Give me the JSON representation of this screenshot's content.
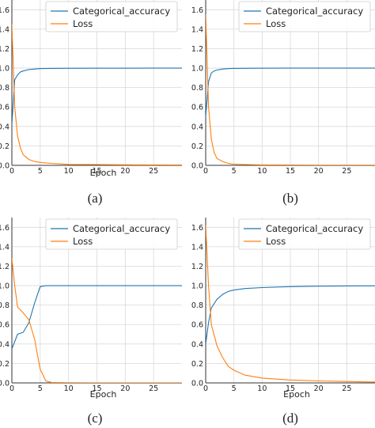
{
  "chart_data": [
    {
      "type": "line",
      "caption": "(a)",
      "xlabel": "Epoch",
      "ylabel": "",
      "xlim": [
        0,
        30
      ],
      "ylim": [
        0,
        1.7
      ],
      "xticks": [
        0,
        5,
        10,
        15,
        20,
        25
      ],
      "yticks": [
        0.0,
        0.2,
        0.4,
        0.6,
        0.8,
        1.0,
        1.2,
        1.4,
        1.6
      ],
      "grid": true,
      "legend_position": "top-right",
      "series": [
        {
          "name": "Categorical_accuracy",
          "color": "#1f77b4",
          "x": [
            0,
            0.5,
            1,
            1.5,
            2,
            3,
            4,
            5,
            7,
            10,
            15,
            20,
            25,
            29,
            30
          ],
          "y": [
            0.42,
            0.88,
            0.93,
            0.96,
            0.97,
            0.985,
            0.99,
            0.995,
            0.997,
            0.998,
            0.999,
            0.999,
            1.0,
            1.0,
            1.0
          ]
        },
        {
          "name": "Loss",
          "color": "#ff7f0e",
          "x": [
            0,
            0.5,
            1,
            1.5,
            2,
            3,
            4,
            5,
            7,
            10,
            15,
            20,
            25,
            29,
            30
          ],
          "y": [
            1.45,
            0.6,
            0.3,
            0.18,
            0.11,
            0.06,
            0.04,
            0.03,
            0.02,
            0.01,
            0.008,
            0.006,
            0.005,
            0.004,
            0.004
          ]
        }
      ]
    },
    {
      "type": "line",
      "caption": "(b)",
      "xlabel": "",
      "ylabel": "",
      "xlim": [
        0,
        30
      ],
      "ylim": [
        0,
        1.7
      ],
      "xticks": [
        0,
        5,
        10,
        15,
        20,
        25
      ],
      "yticks": [
        0.0,
        0.2,
        0.4,
        0.6,
        0.8,
        1.0,
        1.2,
        1.4,
        1.6
      ],
      "grid": true,
      "legend_position": "top-right",
      "series": [
        {
          "name": "Categorical_accuracy",
          "color": "#1f77b4",
          "x": [
            0,
            0.5,
            1,
            1.5,
            2,
            3,
            4,
            5,
            7,
            10,
            15,
            20,
            25,
            29,
            30
          ],
          "y": [
            0.5,
            0.86,
            0.95,
            0.97,
            0.98,
            0.99,
            0.995,
            0.997,
            0.998,
            0.999,
            1.0,
            1.0,
            1.0,
            1.0,
            1.0
          ]
        },
        {
          "name": "Loss",
          "color": "#ff7f0e",
          "x": [
            0,
            0.5,
            1,
            1.5,
            2,
            3,
            4,
            5,
            7,
            10,
            15,
            20,
            25,
            29,
            30
          ],
          "y": [
            1.55,
            0.6,
            0.27,
            0.13,
            0.07,
            0.04,
            0.02,
            0.012,
            0.008,
            0.005,
            0.003,
            0.002,
            0.002,
            0.002,
            0.002
          ]
        }
      ]
    },
    {
      "type": "line",
      "caption": "(c)",
      "xlabel": "Epoch",
      "ylabel": "",
      "xlim": [
        0,
        30
      ],
      "ylim": [
        0,
        1.7
      ],
      "xticks": [
        0,
        5,
        10,
        15,
        20,
        25
      ],
      "yticks": [
        0.0,
        0.2,
        0.4,
        0.6,
        0.8,
        1.0,
        1.2,
        1.4,
        1.6
      ],
      "grid": true,
      "legend_position": "top-right",
      "series": [
        {
          "name": "Categorical_accuracy",
          "color": "#1f77b4",
          "x": [
            0,
            1,
            2,
            3,
            4,
            5,
            6,
            7,
            10,
            15,
            20,
            25,
            29,
            30
          ],
          "y": [
            0.35,
            0.5,
            0.52,
            0.62,
            0.82,
            0.99,
            1.0,
            1.0,
            1.0,
            1.0,
            1.0,
            1.0,
            1.0,
            1.0
          ]
        },
        {
          "name": "Loss",
          "color": "#ff7f0e",
          "x": [
            0,
            0.5,
            1,
            2,
            3,
            4,
            5,
            6,
            7,
            10,
            15,
            20,
            25,
            29,
            30
          ],
          "y": [
            1.28,
            1.0,
            0.78,
            0.72,
            0.65,
            0.45,
            0.14,
            0.02,
            0.005,
            0.002,
            0.001,
            0.001,
            0.001,
            0.001,
            0.001
          ]
        }
      ]
    },
    {
      "type": "line",
      "caption": "(d)",
      "xlabel": "Epoch",
      "ylabel": "",
      "xlim": [
        0,
        30
      ],
      "ylim": [
        0,
        1.7
      ],
      "xticks": [
        0,
        5,
        10,
        15,
        20,
        25
      ],
      "yticks": [
        0.0,
        0.2,
        0.4,
        0.6,
        0.8,
        1.0,
        1.2,
        1.4,
        1.6
      ],
      "grid": true,
      "legend_position": "top-right",
      "series": [
        {
          "name": "Categorical_accuracy",
          "color": "#1f77b4",
          "x": [
            0,
            0.5,
            1,
            2,
            3,
            4,
            5,
            7,
            10,
            15,
            20,
            25,
            29,
            30
          ],
          "y": [
            0.4,
            0.62,
            0.77,
            0.86,
            0.91,
            0.94,
            0.955,
            0.97,
            0.98,
            0.99,
            0.995,
            0.997,
            0.998,
            0.998
          ]
        },
        {
          "name": "Loss",
          "color": "#ff7f0e",
          "x": [
            0,
            0.5,
            1,
            2,
            3,
            4,
            5,
            7,
            10,
            15,
            20,
            25,
            29,
            30
          ],
          "y": [
            1.62,
            1.0,
            0.6,
            0.38,
            0.26,
            0.17,
            0.13,
            0.08,
            0.05,
            0.03,
            0.02,
            0.015,
            0.01,
            0.01
          ]
        }
      ]
    }
  ]
}
